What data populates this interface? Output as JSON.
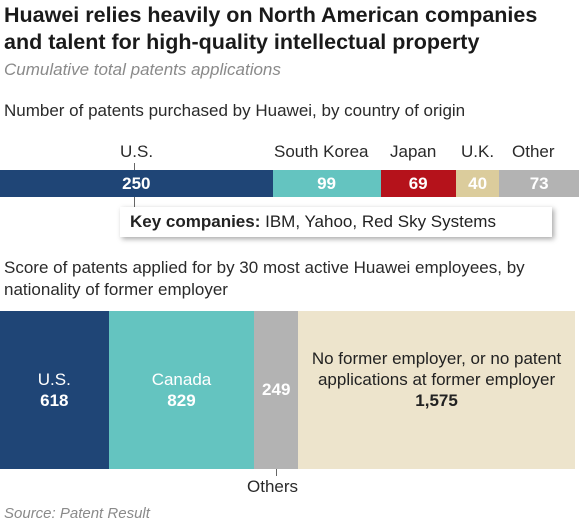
{
  "title": "Huawei relies heavily on North American companies and talent for high-quality intellectual property",
  "subtitle": "Cumulative total patents applications",
  "source": "Source: Patent Result",
  "colors": {
    "us": "#1f4576",
    "canada": "#64c4c0",
    "south_korea": "#64c4c0",
    "japan": "#b5121b",
    "uk": "#dbcc9c",
    "other": "#b3b3b3",
    "no_employer": "#ede4cc"
  },
  "chart_data": [
    {
      "type": "bar",
      "stacked": true,
      "orientation": "horizontal",
      "title": "Number of patents purchased by Huawei, by country of origin",
      "categories": [
        "U.S.",
        "South Korea",
        "Japan",
        "U.K.",
        "Other"
      ],
      "values": [
        250,
        99,
        69,
        40,
        73
      ],
      "annotation": {
        "bold": "Key companies:",
        "text": " IBM, Yahoo, Red Sky Systems"
      }
    },
    {
      "type": "bar",
      "stacked": true,
      "orientation": "horizontal",
      "title": "Score of patents applied for by 30 most active Huawei employees, by nationality of former employer",
      "categories": [
        "U.S.",
        "Canada",
        "Others",
        "No former employer, or no patent applications at former employer"
      ],
      "values": [
        618,
        829,
        249,
        1575
      ],
      "value_labels": [
        "618",
        "829",
        "249",
        "1,575"
      ]
    }
  ]
}
